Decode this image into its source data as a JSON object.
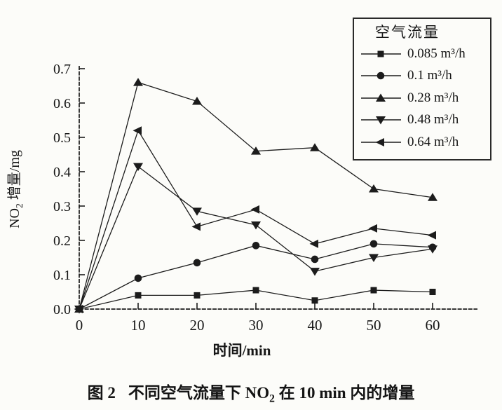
{
  "figure": {
    "caption": {
      "part1": "图 2",
      "part2": "不同空气流量下 NO",
      "sub": "2",
      "part3": " 在 10 min 内的增量"
    }
  },
  "chart_data": {
    "type": "line",
    "title": "图 2 不同空气流量下 NO2 在 10 min 内的增量",
    "xlabel": "时间/min",
    "ylabel": {
      "pre": "NO",
      "sub": "2",
      "post": " 增量/mg"
    },
    "legend_title": "空气流量",
    "legend_position": "top-right",
    "grid": false,
    "line_color": "#1c1c1c",
    "xlim": [
      0,
      60
    ],
    "ylim": [
      0,
      0.7
    ],
    "x_ticks": [
      "0",
      "10",
      "20",
      "30",
      "40",
      "50",
      "60"
    ],
    "y_ticks": [
      "0.0",
      "0.1",
      "0.2",
      "0.3",
      "0.4",
      "0.5",
      "0.6",
      "0.7"
    ],
    "x": [
      0,
      10,
      20,
      30,
      40,
      50,
      60
    ],
    "series": [
      {
        "name": "0.085 m³/h",
        "marker": "square",
        "values": [
          0,
          0.04,
          0.04,
          0.055,
          0.025,
          0.055,
          0.05
        ]
      },
      {
        "name": "0.1 m³/h",
        "marker": "circle",
        "values": [
          0,
          0.09,
          0.135,
          0.185,
          0.145,
          0.19,
          0.18
        ]
      },
      {
        "name": "0.28 m³/h",
        "marker": "triangle-up",
        "values": [
          0,
          0.66,
          0.605,
          0.46,
          0.47,
          0.35,
          0.325
        ]
      },
      {
        "name": "0.48 m³/h",
        "marker": "triangle-down",
        "values": [
          0,
          0.415,
          0.285,
          0.245,
          0.11,
          0.15,
          0.175
        ]
      },
      {
        "name": "0.64 m³/h",
        "marker": "triangle-left",
        "values": [
          0,
          0.52,
          0.24,
          0.29,
          0.19,
          0.235,
          0.215
        ]
      }
    ]
  }
}
